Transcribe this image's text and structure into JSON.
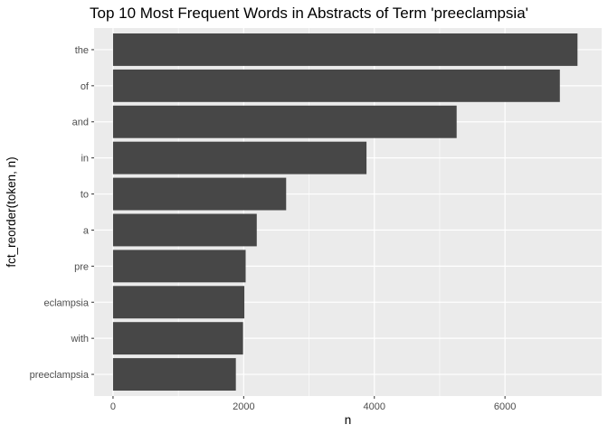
{
  "chart_data": {
    "type": "bar",
    "orientation": "horizontal",
    "title": "Top 10 Most Frequent Words in Abstracts of Term 'preeclampsia'",
    "xlabel": "n",
    "ylabel": "fct_reorder(token, n)",
    "categories": [
      "the",
      "of",
      "and",
      "in",
      "to",
      "a",
      "pre",
      "eclampsia",
      "with",
      "preeclampsia"
    ],
    "values": [
      7110,
      6840,
      5260,
      3880,
      2650,
      2200,
      2030,
      2010,
      1990,
      1880
    ],
    "xlim": [
      -290,
      7480
    ],
    "xticks": [
      0,
      2000,
      4000,
      6000
    ],
    "grid": true,
    "bar_color": "#474747",
    "panel_color": "#ebebeb",
    "grid_color": "#ffffff"
  }
}
